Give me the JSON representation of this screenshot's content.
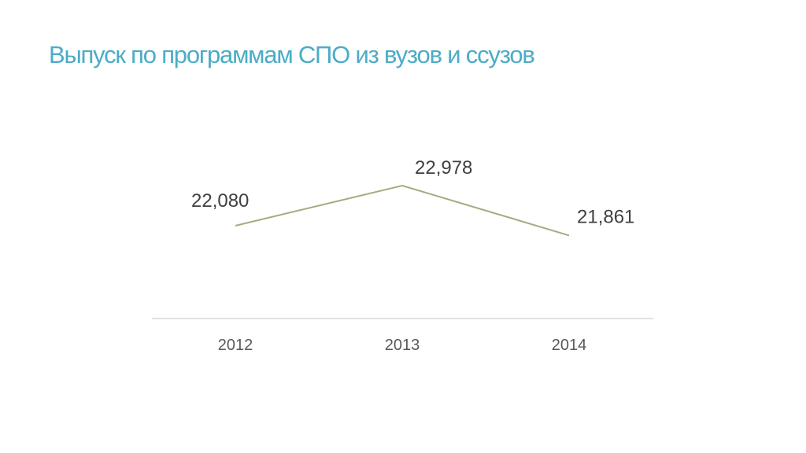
{
  "slide": {
    "title": "Выпуск по программам СПО из вузов и ссузов"
  },
  "colors": {
    "title": "#4bacc6",
    "line": "#a5ab81",
    "axis": "#d9d9d9",
    "data_label": "#404040",
    "tick_label": "#595959"
  },
  "chart_data": {
    "type": "line",
    "categories": [
      "2012",
      "2013",
      "2014"
    ],
    "series": [
      {
        "values": [
          22080,
          22978,
          21861
        ]
      }
    ],
    "data_labels": [
      "22,080",
      "22,978",
      "21,861"
    ],
    "title": "",
    "xlabel": "",
    "ylabel": "",
    "grid": false,
    "legend": "none"
  }
}
